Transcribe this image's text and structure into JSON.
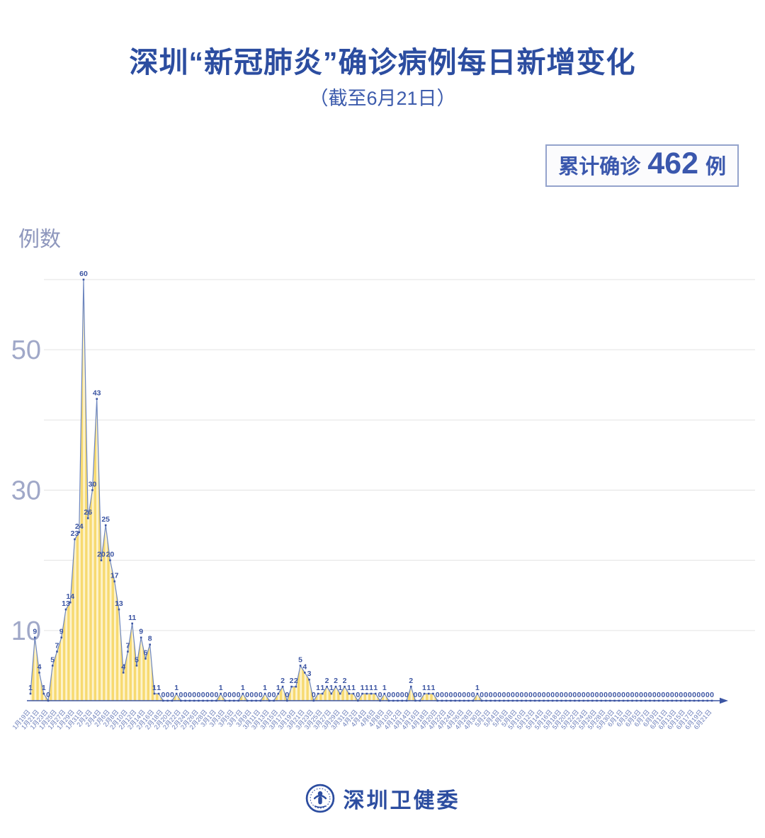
{
  "header": {
    "title": "深圳“新冠肺炎”确诊病例每日新增变化",
    "subtitle": "（截至6月21日）",
    "badge": {
      "prefix": "累计确诊",
      "value": "462",
      "suffix": "例"
    }
  },
  "footer": {
    "org": "深圳卫健委",
    "logo_icon": "shenzhen-health-commission-emblem"
  },
  "chart_data": {
    "type": "area",
    "title": "深圳新冠肺炎确诊病例每日新增变化（截至6月21日）",
    "xlabel": "",
    "ylabel": "例数",
    "ylim": [
      0,
      62
    ],
    "grid": true,
    "y_gridlines": [
      10,
      20,
      30,
      40,
      50,
      60
    ],
    "y_ticks_labeled": [
      10,
      30,
      50
    ],
    "tick_every_n_points": 2,
    "x_tick_rotation": -50,
    "x_tick_labels": [
      "1月19日",
      "1月21日",
      "1月23日",
      "1月25日",
      "1月27日",
      "1月29日",
      "1月31日",
      "2月2日",
      "2月4日",
      "2月6日",
      "2月8日",
      "2月10日",
      "2月12日",
      "2月14日",
      "2月16日",
      "2月18日",
      "2月20日",
      "2月22日",
      "2月24日",
      "2月26日",
      "2月28日",
      "3月1日",
      "3月3日",
      "3月5日",
      "3月7日",
      "3月9日",
      "3月11日",
      "3月13日",
      "3月15日",
      "3月17日",
      "3月19日",
      "3月21日",
      "3月23日",
      "3月25日",
      "3月27日",
      "3月29日",
      "3月31日",
      "4月2日",
      "4月4日",
      "4月6日",
      "4月8日",
      "4月10日",
      "4月12日",
      "4月14日",
      "4月16日",
      "4月18日",
      "4月20日",
      "4月22日",
      "4月24日",
      "4月26日",
      "4月28日",
      "4月30日",
      "5月2日",
      "5月4日",
      "5月6日",
      "5月8日",
      "5月10日",
      "5月12日",
      "5月14日",
      "5月16日",
      "5月18日",
      "5月20日",
      "5月22日",
      "5月24日",
      "5月26日",
      "5月28日",
      "5月30日",
      "6月1日",
      "6月3日",
      "6月5日",
      "6月7日",
      "6月9日",
      "6月11日",
      "6月13日",
      "6月15日",
      "6月17日",
      "6月19日",
      "6月21日"
    ],
    "values": [
      1,
      9,
      4,
      1,
      0,
      5,
      7,
      9,
      13,
      14,
      23,
      24,
      60,
      26,
      30,
      43,
      20,
      25,
      20,
      17,
      13,
      4,
      7,
      11,
      5,
      9,
      6,
      8,
      1,
      1,
      0,
      0,
      0,
      1,
      0,
      0,
      0,
      0,
      0,
      0,
      0,
      0,
      0,
      1,
      0,
      0,
      0,
      0,
      1,
      0,
      0,
      0,
      0,
      1,
      0,
      0,
      1,
      2,
      0,
      2,
      2,
      5,
      4,
      3,
      0,
      1,
      1,
      2,
      1,
      2,
      1,
      2,
      1,
      1,
      0,
      1,
      1,
      1,
      1,
      0,
      1,
      0,
      0,
      0,
      0,
      0,
      2,
      0,
      0,
      1,
      1,
      1,
      0,
      0,
      0,
      0,
      0,
      0,
      0,
      0,
      0,
      1,
      0,
      0,
      0,
      0,
      0,
      0,
      0,
      0,
      0,
      0,
      0,
      0,
      0,
      0,
      0,
      0,
      0,
      0,
      0,
      0,
      0,
      0,
      0,
      0,
      0,
      0,
      0,
      0,
      0,
      0,
      0,
      0,
      0,
      0,
      0,
      0,
      0,
      0,
      0,
      0,
      0,
      0,
      0,
      0,
      0,
      0,
      0,
      0,
      0,
      0,
      0,
      0,
      0
    ],
    "total": 462,
    "colors": {
      "accent_blue": "#2c4da0",
      "line": "#6d86bf",
      "marker": "#3c55a3",
      "value_label": "#3b54a2",
      "stripe_yellow": "#f7da70",
      "stripe_light": "#fdf3cc",
      "gridline": "#e3e3e3",
      "axis": "#3c55a3",
      "x_tick": "#6a7db9",
      "y_tick": "#a0a8c8"
    }
  }
}
